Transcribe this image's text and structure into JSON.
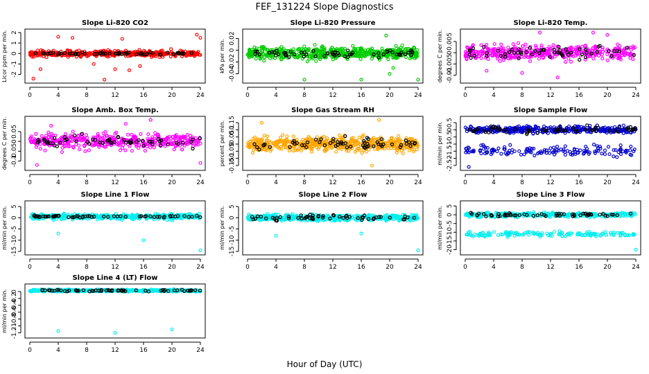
{
  "title": "FEF_131224  Slope Diagnostics",
  "xlabel": "Hour of Day (UTC)",
  "chart_data": [
    {
      "type": "scatter",
      "title": "Slope Li-820 CO2",
      "ylabel": "Licor ppm per min.",
      "ylim": [
        -2.5,
        2.0
      ],
      "yticks": [
        -2,
        -1,
        0,
        1,
        2
      ],
      "xlim": [
        0,
        24
      ],
      "xticks": [
        0,
        4,
        8,
        12,
        16,
        20,
        24
      ],
      "color": "#ff0000",
      "n": 420,
      "spread": 0.35,
      "offset": 0,
      "outliers": [
        [
          0.5,
          -2.4
        ],
        [
          1.5,
          -1.5
        ],
        [
          4,
          1.6
        ],
        [
          6,
          1.5
        ],
        [
          9,
          -1.0
        ],
        [
          10.5,
          -2.5
        ],
        [
          12,
          -1.5
        ],
        [
          13,
          1.4
        ],
        [
          14,
          -1.6
        ],
        [
          15.5,
          -1.2
        ],
        [
          23.5,
          1.8
        ],
        [
          24,
          1.5
        ]
      ],
      "black_spread": 0.15
    },
    {
      "type": "scatter",
      "title": "Slope Li-820 Pressure",
      "ylabel": "kPa per min.",
      "ylim": [
        -0.05,
        0.03
      ],
      "yticks": [
        -0.04,
        -0.02,
        0.0,
        0.02
      ],
      "xlim": [
        0,
        24
      ],
      "xticks": [
        0,
        4,
        8,
        12,
        16,
        20,
        24
      ],
      "color": "#00cc00",
      "n": 520,
      "spread": 0.012,
      "offset": -0.005,
      "outliers": [
        [
          8,
          -0.05
        ],
        [
          16,
          -0.05
        ],
        [
          20,
          -0.04
        ],
        [
          19.5,
          0.025
        ],
        [
          20.5,
          -0.03
        ],
        [
          24,
          -0.05
        ]
      ],
      "black_spread": 0.007
    },
    {
      "type": "scatter",
      "title": "Slope Li-820 Temp.",
      "ylabel": "degrees C per min.",
      "ylim": [
        -0.012,
        0.009
      ],
      "yticks": [
        -0.01,
        -0.005,
        0.0,
        0.005
      ],
      "xlim": [
        0,
        24
      ],
      "xticks": [
        0,
        4,
        8,
        12,
        16,
        20,
        24
      ],
      "color": "#ff00ff",
      "n": 420,
      "spread": 0.004,
      "offset": 0,
      "outliers": [
        [
          3,
          -0.008
        ],
        [
          8,
          -0.009
        ],
        [
          10.5,
          0.009
        ],
        [
          13,
          -0.011
        ],
        [
          18,
          0.009
        ],
        [
          20,
          0.008
        ]
      ],
      "black_spread": 0.003
    },
    {
      "type": "scatter",
      "title": "Slope Amb. Box Temp.",
      "ylabel": "degrees C per min.",
      "ylim": [
        -0.13,
        0.11
      ],
      "yticks": [
        -0.1,
        -0.05,
        0.0,
        0.05
      ],
      "xlim": [
        0,
        24
      ],
      "xticks": [
        0,
        4,
        8,
        12,
        16,
        20,
        24
      ],
      "color": "#ff00ff",
      "n": 420,
      "spread": 0.045,
      "offset": 0,
      "outliers": [
        [
          1,
          -0.12
        ],
        [
          3,
          0.08
        ],
        [
          13.5,
          0.09
        ],
        [
          17,
          0.11
        ],
        [
          24,
          -0.11
        ]
      ],
      "black_spread": 0.035
    },
    {
      "type": "scatter",
      "title": "Slope Gas Stream RH",
      "ylabel": "percent per min.",
      "ylim": [
        -0.16,
        0.17
      ],
      "yticks": [
        -0.15,
        -0.1,
        -0.05,
        0.0,
        0.05,
        0.1,
        0.15
      ],
      "xlim": [
        0,
        24
      ],
      "xticks": [
        0,
        4,
        8,
        12,
        16,
        20,
        24
      ],
      "color": "#ffa500",
      "n": 560,
      "spread": 0.06,
      "offset": 0,
      "outliers": [
        [
          2,
          0.15
        ],
        [
          17.5,
          -0.15
        ],
        [
          18.5,
          0.17
        ]
      ],
      "black_spread": 0.04
    },
    {
      "type": "scatter",
      "title": "Slope Sample Flow",
      "ylabel": "ml/min per min.",
      "ylim": [
        -2.6,
        0.7
      ],
      "yticks": [
        -2.5,
        -2.0,
        -1.5,
        -1.0,
        -0.5,
        0.0,
        0.5
      ],
      "xlim": [
        0,
        24
      ],
      "xticks": [
        0,
        4,
        8,
        12,
        16,
        20,
        24
      ],
      "color": "#0000cc",
      "n": 520,
      "spread": 0.3,
      "offset": 0,
      "second_band": [
        -1.5,
        0.6
      ],
      "outliers": [
        [
          0.5,
          -2.6
        ]
      ],
      "black_spread": 0.25
    },
    {
      "type": "scatter",
      "title": "Slope Line 1 Flow",
      "ylabel": "ml/min per min.",
      "ylim": [
        -15,
        6
      ],
      "yticks": [
        -15,
        -10,
        -5,
        0,
        5
      ],
      "xlim": [
        0,
        24
      ],
      "xticks": [
        0,
        4,
        8,
        12,
        16,
        20,
        24
      ],
      "color": "#00eeee",
      "n": 420,
      "spread": 1.4,
      "offset": 0.5,
      "outliers": [
        [
          4,
          -7
        ],
        [
          16,
          -10
        ],
        [
          24,
          -14.5
        ]
      ],
      "black_spread": 0.5
    },
    {
      "type": "scatter",
      "title": "Slope Line 2 Flow",
      "ylabel": "ml/min per min.",
      "ylim": [
        -15,
        6
      ],
      "yticks": [
        -15,
        -10,
        -5,
        0,
        5
      ],
      "xlim": [
        0,
        24
      ],
      "xticks": [
        0,
        4,
        8,
        12,
        16,
        20,
        24
      ],
      "color": "#00eeee",
      "n": 420,
      "spread": 1.6,
      "offset": 0,
      "outliers": [
        [
          4,
          -8
        ],
        [
          16,
          -7
        ],
        [
          24,
          -14.5
        ]
      ],
      "black_spread": 1.2
    },
    {
      "type": "scatter",
      "title": "Slope Line 3 Flow",
      "ylabel": "ml/min per min.",
      "ylim": [
        -21,
        6
      ],
      "yticks": [
        -20,
        -15,
        -10,
        -5,
        0,
        5
      ],
      "xlim": [
        0,
        24
      ],
      "xticks": [
        0,
        4,
        8,
        12,
        16,
        20,
        24
      ],
      "color": "#00eeee",
      "n": 460,
      "spread": 1.5,
      "offset": 0,
      "second_band": [
        -11,
        2.2
      ],
      "outliers": [
        [
          24,
          -20
        ]
      ],
      "black_spread": 1.2
    },
    {
      "type": "scatter",
      "title": "Slope Line 4 (LT) Flow",
      "ylabel": "ml/min per min.",
      "ylim": [
        -1.25,
        0.12
      ],
      "yticks": [
        -1.2,
        -1.0,
        -0.8,
        -0.6,
        -0.4,
        -0.2,
        0.0
      ],
      "xlim": [
        0,
        24
      ],
      "xticks": [
        0,
        4,
        8,
        12,
        16,
        20,
        24
      ],
      "color": "#00eeee",
      "n": 420,
      "spread": 0.04,
      "offset": 0.03,
      "outliers": [
        [
          4,
          -1.15
        ],
        [
          12,
          -1.2
        ],
        [
          20,
          -1.1
        ]
      ],
      "black_spread": 0.025
    }
  ]
}
